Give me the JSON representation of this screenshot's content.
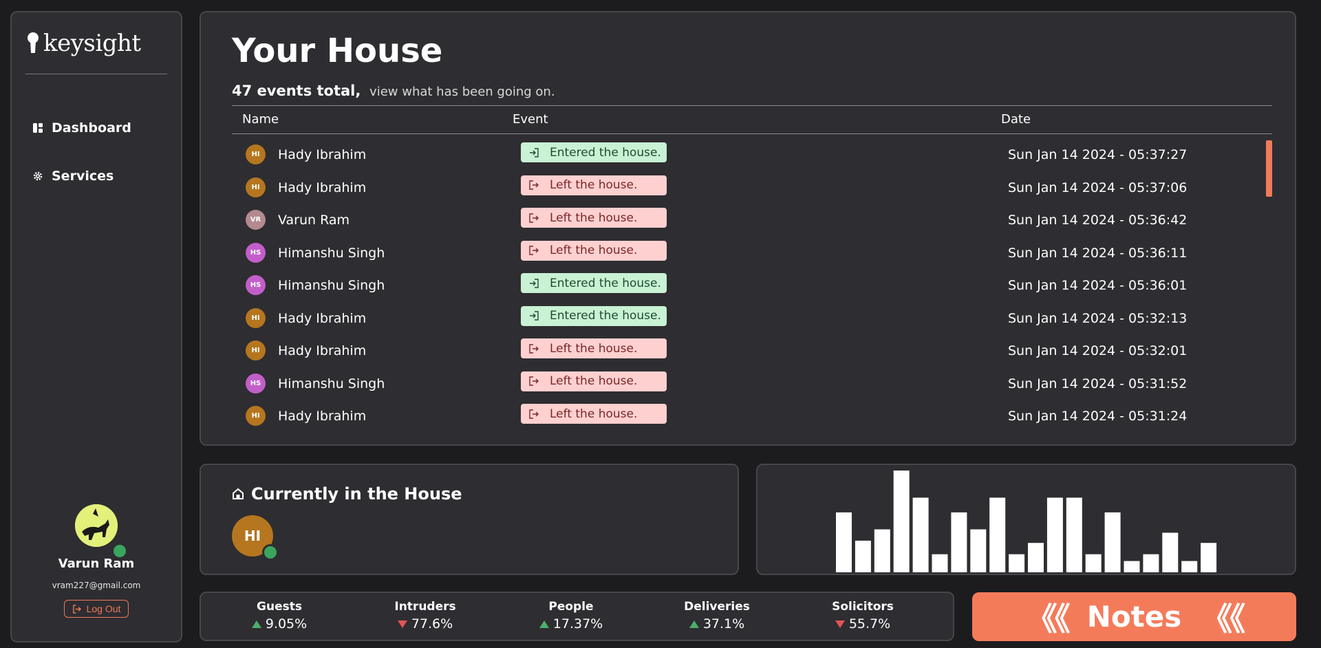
{
  "sidebar": {
    "brand": "keysight",
    "nav": [
      {
        "label": "Dashboard",
        "icon": "dashboard-icon"
      },
      {
        "label": "Services",
        "icon": "gear-icon"
      }
    ],
    "user": {
      "name": "Varun Ram",
      "email": "vram227@gmail.com",
      "logout_label": "Log Out"
    }
  },
  "events": {
    "title": "Your House",
    "count_text": "47 events total,",
    "subtitle_text": "view what has been going on.",
    "columns": [
      "Name",
      "Event",
      "Date"
    ],
    "rows": [
      {
        "initials": "HI",
        "name": "Hady Ibrahim",
        "event": "Entered the house.",
        "type": "in",
        "date": "Sun Jan 14 2024 - 05:37:27",
        "color": "#b5761f"
      },
      {
        "initials": "HI",
        "name": "Hady Ibrahim",
        "event": "Left the house.",
        "type": "out",
        "date": "Sun Jan 14 2024 - 05:37:06",
        "color": "#b5761f"
      },
      {
        "initials": "VR",
        "name": "Varun Ram",
        "event": "Left the house.",
        "type": "out",
        "date": "Sun Jan 14 2024 - 05:36:42",
        "color": "#b38a8f"
      },
      {
        "initials": "HS",
        "name": "Himanshu Singh",
        "event": "Left the house.",
        "type": "out",
        "date": "Sun Jan 14 2024 - 05:36:11",
        "color": "#c25ec9"
      },
      {
        "initials": "HS",
        "name": "Himanshu Singh",
        "event": "Entered the house.",
        "type": "in",
        "date": "Sun Jan 14 2024 - 05:36:01",
        "color": "#c25ec9"
      },
      {
        "initials": "HI",
        "name": "Hady Ibrahim",
        "event": "Entered the house.",
        "type": "in",
        "date": "Sun Jan 14 2024 - 05:32:13",
        "color": "#b5761f"
      },
      {
        "initials": "HI",
        "name": "Hady Ibrahim",
        "event": "Left the house.",
        "type": "out",
        "date": "Sun Jan 14 2024 - 05:32:01",
        "color": "#b5761f"
      },
      {
        "initials": "HS",
        "name": "Himanshu Singh",
        "event": "Left the house.",
        "type": "out",
        "date": "Sun Jan 14 2024 - 05:31:52",
        "color": "#c25ec9"
      },
      {
        "initials": "HI",
        "name": "Hady Ibrahim",
        "event": "Left the house.",
        "type": "out",
        "date": "Sun Jan 14 2024 - 05:31:24",
        "color": "#b5761f"
      }
    ]
  },
  "in_house": {
    "title": "Currently in the House",
    "occupants": [
      {
        "initials": "HI",
        "color": "#b5761f"
      }
    ]
  },
  "chart_data": {
    "type": "bar",
    "title": "",
    "xlabel": "",
    "ylabel": "",
    "values": [
      5.3,
      2.8,
      3.8,
      9,
      6.6,
      1.6,
      5.3,
      3.8,
      6.6,
      1.6,
      2.6,
      6.6,
      6.6,
      1.6,
      5.3,
      1.0,
      1.6,
      3.5,
      1.0,
      2.6
    ],
    "bar_color": "#ffffff",
    "grid": false
  },
  "stats": [
    {
      "label": "Guests",
      "value": "9.05%",
      "trend": "up"
    },
    {
      "label": "Intruders",
      "value": "77.6%",
      "trend": "down"
    },
    {
      "label": "People",
      "value": "17.37%",
      "trend": "up"
    },
    {
      "label": "Deliveries",
      "value": "37.1%",
      "trend": "up"
    },
    {
      "label": "Solicitors",
      "value": "55.7%",
      "trend": "down"
    }
  ],
  "notes": {
    "label": "Notes",
    "color": "#f47b5a"
  },
  "colors": {
    "accent": "#f07a5a",
    "online": "#3aa55d"
  }
}
